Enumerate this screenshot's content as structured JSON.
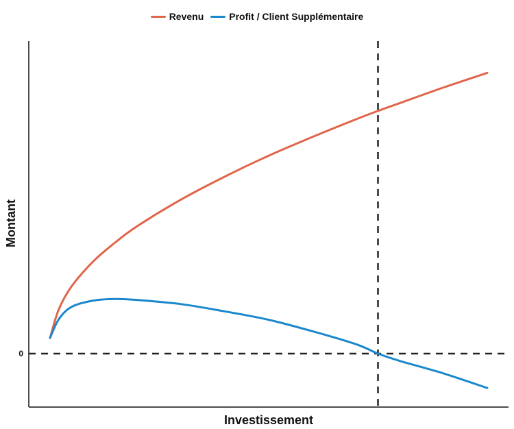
{
  "chart_data": {
    "type": "line",
    "title": "",
    "xlabel": "Investissement",
    "ylabel": "Montant",
    "grid": false,
    "legend_position": "top-center",
    "xlim": [
      0,
      100
    ],
    "ylim": [
      -10,
      60
    ],
    "x": [
      0,
      2,
      5,
      10,
      15,
      20,
      30,
      40,
      50,
      60,
      70,
      75,
      80,
      90,
      100
    ],
    "series": [
      {
        "name": "Revenu",
        "color": "#e0654a",
        "values": [
          3,
          8.5,
          13,
          17.8,
          21.4,
          24.5,
          29.6,
          34.0,
          38.0,
          41.6,
          45.0,
          46.6,
          48.1,
          51.1,
          53.9
        ]
      },
      {
        "name": "Profit / Client Supplémentaire",
        "color": "#1a87cc",
        "values": [
          3,
          6.6,
          9.0,
          10.2,
          10.5,
          10.3,
          9.5,
          8.1,
          6.5,
          4.3,
          1.8,
          0.0,
          -1.4,
          -3.8,
          -6.6
        ]
      }
    ],
    "reference_lines": [
      {
        "orientation": "horizontal",
        "y": 0,
        "style": "dashed",
        "color": "#222222"
      },
      {
        "orientation": "vertical",
        "x": 75,
        "style": "dashed",
        "color": "#222222"
      }
    ],
    "y_ticks": [
      {
        "value": 0,
        "label": "0"
      }
    ]
  }
}
